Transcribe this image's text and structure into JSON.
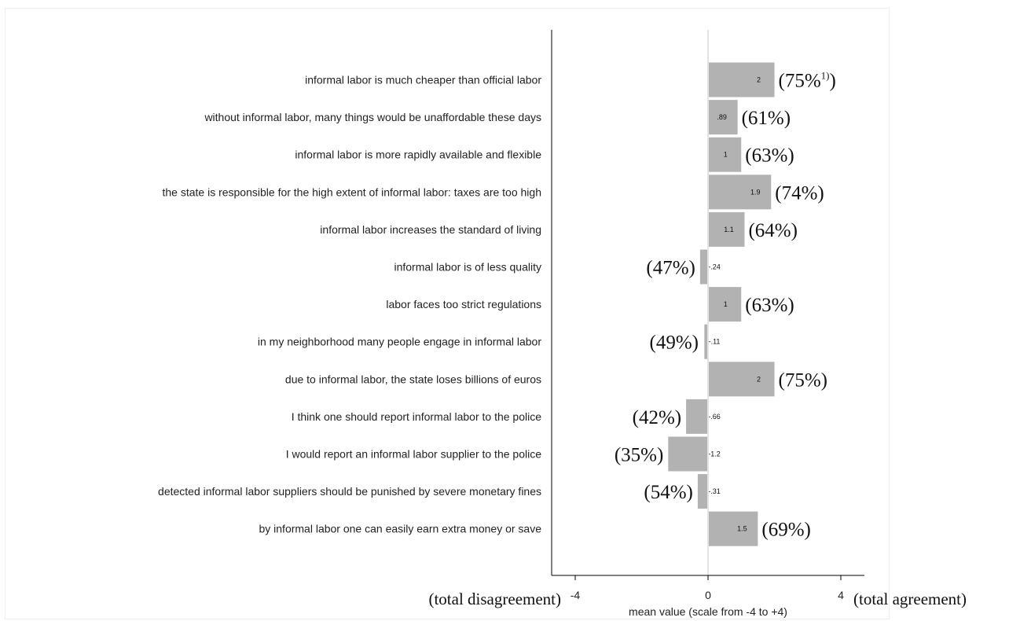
{
  "chart_data": {
    "type": "bar",
    "orientation": "horizontal",
    "categories": [
      "informal labor is much cheaper than official labor",
      "without informal labor, many things would be unaffordable these days",
      "informal labor is more rapidly available and flexible",
      "the state is responsible for the high extent of informal labor: taxes are too high",
      "informal labor increases the standard of living",
      "informal labor is of less quality",
      "labor faces too strict regulations",
      "in my neighborhood many people engage in informal labor",
      "due to informal labor, the state loses billions of euros",
      "I think one should report informal labor to the police",
      "I would report an informal labor supplier to the police",
      "detected informal labor suppliers should be punished by severe monetary fines",
      "by informal labor one can easily earn extra money or save"
    ],
    "values": [
      2,
      0.89,
      1,
      1.9,
      1.1,
      -0.24,
      1,
      -0.11,
      2,
      -0.66,
      -1.2,
      -0.31,
      1.5
    ],
    "value_labels": [
      "2",
      ".89",
      "1",
      "1.9",
      "1.1",
      "-.24",
      "1",
      "-.11",
      "2",
      "-.66",
      "-1.2",
      "-.31",
      "1.5"
    ],
    "agreement_labels": [
      "(75%",
      "(61%)",
      "(63%)",
      "(74%)",
      "(64%)",
      "(47%)",
      "(63%)",
      "(49%)",
      "(75%)",
      "(42%)",
      "(35%)",
      "(54%)",
      "(69%)"
    ],
    "first_label_footnote": "1)",
    "first_label_close": ")",
    "xlabel": "mean value (scale from -4 to +4)",
    "xlim": [
      -4.8,
      4.8
    ],
    "xticks": [
      -4,
      0,
      4
    ],
    "xtick_labels": [
      "-4",
      "0",
      "4"
    ],
    "left_end_label": "(total disagreement)",
    "right_end_label": "(total agreement)",
    "bar_color": "#b2b2b2",
    "grid": false,
    "legend": "none"
  }
}
